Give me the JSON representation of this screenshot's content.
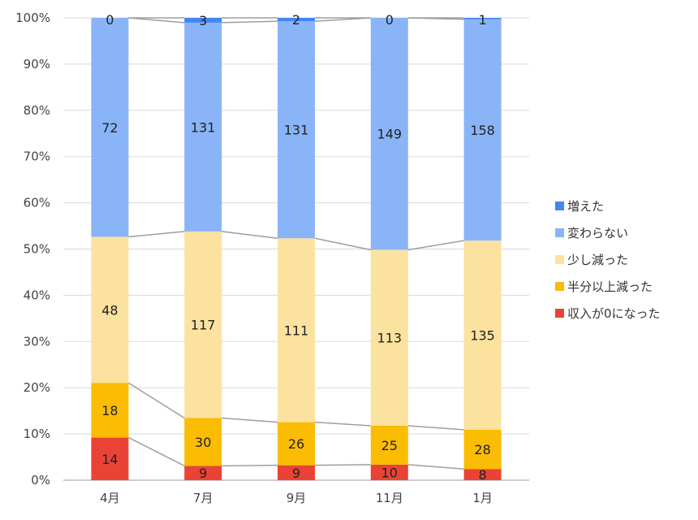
{
  "chart_data": {
    "type": "bar",
    "stacked": "percent",
    "categories": [
      "4月",
      "7月",
      "9月",
      "11月",
      "1月"
    ],
    "series": [
      {
        "name": "収入が0になった",
        "color": "#ea4335",
        "values": [
          14,
          9,
          9,
          10,
          8
        ]
      },
      {
        "name": "半分以上減った",
        "color": "#fbbc04",
        "values": [
          18,
          30,
          26,
          25,
          28
        ]
      },
      {
        "name": "少し減った",
        "color": "#fce29f",
        "values": [
          48,
          117,
          111,
          113,
          135
        ]
      },
      {
        "name": "変わらない",
        "color": "#8ab4f8",
        "values": [
          72,
          131,
          131,
          149,
          158
        ]
      },
      {
        "name": "増えた",
        "color": "#4285f4",
        "values": [
          0,
          3,
          2,
          0,
          1
        ]
      }
    ],
    "y_tick_labels": [
      "0%",
      "10%",
      "20%",
      "30%",
      "40%",
      "50%",
      "60%",
      "70%",
      "80%",
      "90%",
      "100%"
    ],
    "ylim": [
      0,
      100
    ],
    "grid": true,
    "series_lines": true,
    "legend_position": "right",
    "title": "",
    "xlabel": "",
    "ylabel": ""
  }
}
